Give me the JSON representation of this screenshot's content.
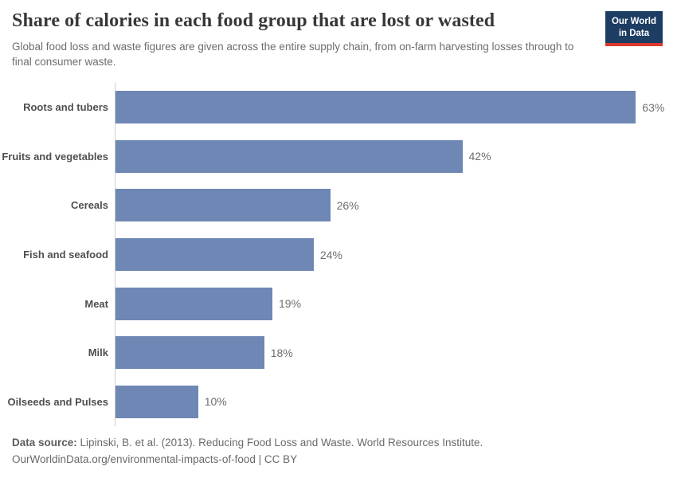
{
  "header": {
    "title": "Share of calories in each food group that are lost or wasted",
    "subtitle": "Global food loss and waste figures are given across the entire supply chain, from on-farm harvesting losses through to final consumer waste.",
    "logo": {
      "line1": "Our World",
      "line2": "in Data"
    }
  },
  "chart_data": {
    "type": "bar",
    "orientation": "horizontal",
    "title": "Share of calories in each food group that are lost or wasted",
    "categories": [
      "Roots and tubers",
      "Fruits and vegetables",
      "Cereals",
      "Fish and seafood",
      "Meat",
      "Milk",
      "Oilseeds and Pulses"
    ],
    "values": [
      63,
      42,
      26,
      24,
      19,
      18,
      10
    ],
    "value_labels": [
      "63%",
      "42%",
      "26%",
      "24%",
      "19%",
      "18%",
      "10%"
    ],
    "unit": "%",
    "xlabel": "",
    "ylabel": "",
    "xlim": [
      0,
      66
    ],
    "grid": false,
    "legend_position": "none",
    "bar_color": "#6e87b4",
    "axis_color": "#cccccc"
  },
  "footer": {
    "source_label": "Data source:",
    "source_text": "Lipinski, B. et al. (2013). Reducing Food Loss and Waste. World Resources Institute.",
    "link_text": "OurWorldinData.org/environmental-impacts-of-food",
    "license_text": "| CC BY"
  },
  "colors": {
    "bar": "#6e87b4",
    "logo_bg": "#1d3d63",
    "logo_underline": "#d93a2a",
    "title_text": "#373737",
    "subtitle_text": "#6d6d6d",
    "footer_text": "#6a6a6a"
  }
}
